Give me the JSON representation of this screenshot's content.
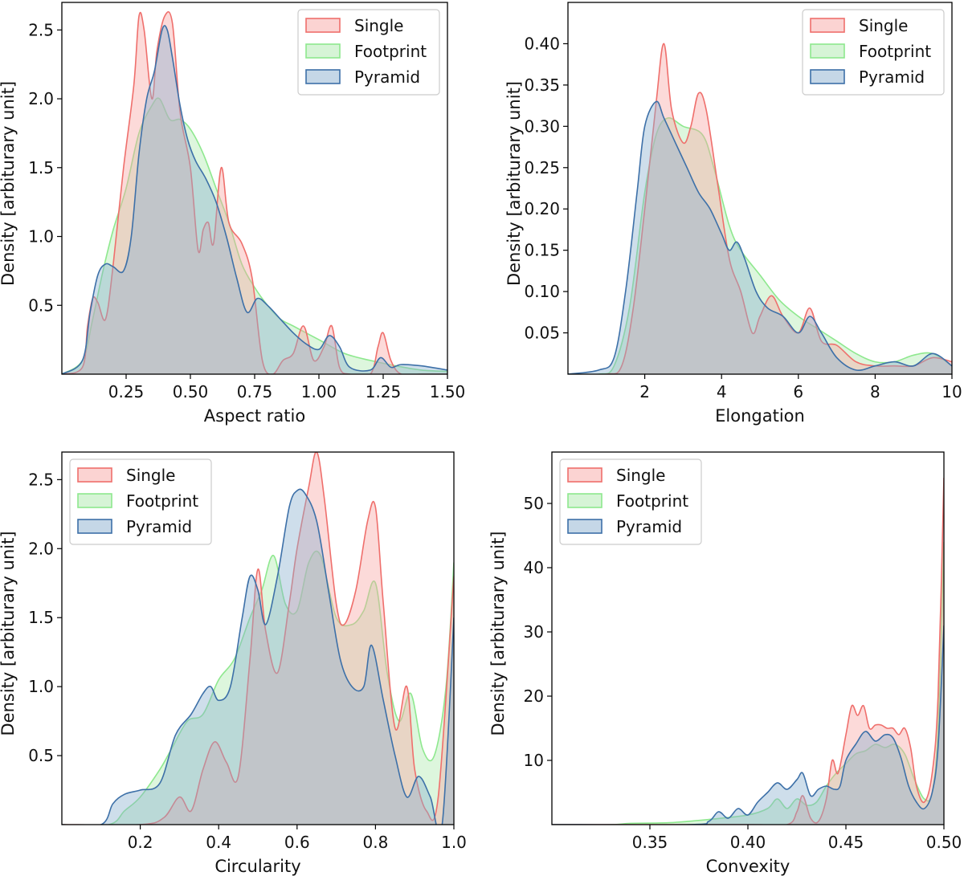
{
  "colors": {
    "Single": {
      "line": "#ef6f6c",
      "fill": "#f7a8a5"
    },
    "Footprint": {
      "line": "#8ee88e",
      "fill": "#aeeaae"
    },
    "Pyramid": {
      "line": "#3d70a8",
      "fill": "#8bb0cf"
    }
  },
  "chart_data": [
    {
      "type": "area",
      "xlabel": "Aspect ratio",
      "ylabel": "Density [arbiturary unit]",
      "xlim": [
        0.0,
        1.5
      ],
      "ylim": [
        0.0,
        2.7
      ],
      "xticks": [
        0.25,
        0.5,
        0.75,
        1.0,
        1.25,
        1.5
      ],
      "xtick_labels": [
        "0.25",
        "0.50",
        "0.75",
        "1.00",
        "1.25",
        "1.50"
      ],
      "yticks": [
        0.5,
        1.0,
        1.5,
        2.0,
        2.5
      ],
      "ytick_labels": [
        "0.5",
        "1.0",
        "1.5",
        "2.0",
        "2.5"
      ],
      "legend": {
        "placement": "top-right",
        "entries": [
          "Single",
          "Footprint",
          "Pyramid"
        ]
      },
      "series": [
        {
          "name": "Single",
          "x": [
            0.0,
            0.08,
            0.1,
            0.12,
            0.14,
            0.17,
            0.2,
            0.24,
            0.28,
            0.3,
            0.32,
            0.35,
            0.37,
            0.4,
            0.43,
            0.46,
            0.5,
            0.53,
            0.55,
            0.57,
            0.59,
            0.62,
            0.65,
            0.7,
            0.74,
            0.78,
            0.82,
            0.86,
            0.9,
            0.94,
            0.98,
            1.02,
            1.05,
            1.08,
            1.12,
            1.2,
            1.23,
            1.25,
            1.28,
            1.32,
            1.4,
            1.5
          ],
          "y": [
            0.0,
            0.05,
            0.35,
            0.55,
            0.52,
            0.4,
            0.8,
            1.5,
            2.1,
            2.6,
            2.5,
            2.0,
            2.35,
            2.6,
            2.55,
            1.9,
            1.5,
            0.9,
            1.05,
            1.1,
            0.95,
            1.5,
            1.1,
            0.95,
            0.7,
            0.1,
            0.0,
            0.1,
            0.15,
            0.35,
            0.1,
            0.2,
            0.35,
            0.05,
            0.0,
            0.0,
            0.2,
            0.3,
            0.1,
            0.0,
            0.0,
            0.0
          ]
        },
        {
          "name": "Footprint",
          "x": [
            0.0,
            0.08,
            0.12,
            0.16,
            0.2,
            0.25,
            0.3,
            0.35,
            0.38,
            0.42,
            0.46,
            0.5,
            0.55,
            0.6,
            0.65,
            0.7,
            0.75,
            0.8,
            0.85,
            0.9,
            1.0,
            1.1,
            1.2,
            1.3,
            1.4,
            1.5
          ],
          "y": [
            0.0,
            0.1,
            0.4,
            0.75,
            1.05,
            1.35,
            1.75,
            1.95,
            2.0,
            1.85,
            1.85,
            1.78,
            1.6,
            1.35,
            1.1,
            0.8,
            0.63,
            0.5,
            0.4,
            0.35,
            0.25,
            0.15,
            0.1,
            0.06,
            0.03,
            0.02
          ]
        },
        {
          "name": "Pyramid",
          "x": [
            0.0,
            0.08,
            0.11,
            0.14,
            0.17,
            0.2,
            0.24,
            0.27,
            0.3,
            0.33,
            0.36,
            0.39,
            0.41,
            0.43,
            0.46,
            0.49,
            0.52,
            0.56,
            0.6,
            0.64,
            0.68,
            0.72,
            0.76,
            0.8,
            0.85,
            0.9,
            0.95,
            1.0,
            1.04,
            1.08,
            1.12,
            1.2,
            1.24,
            1.28,
            1.32,
            1.4,
            1.5
          ],
          "y": [
            0.0,
            0.1,
            0.45,
            0.72,
            0.8,
            0.78,
            0.75,
            1.0,
            1.6,
            2.0,
            2.2,
            2.5,
            2.5,
            2.3,
            1.95,
            1.7,
            1.55,
            1.42,
            1.25,
            1.0,
            0.7,
            0.45,
            0.55,
            0.5,
            0.4,
            0.3,
            0.22,
            0.18,
            0.28,
            0.2,
            0.05,
            0.03,
            0.12,
            0.05,
            0.07,
            0.06,
            0.03
          ]
        }
      ]
    },
    {
      "type": "area",
      "xlabel": "Elongation",
      "ylabel": "Density [arbiturary unit]",
      "xlim": [
        0.0,
        10.0
      ],
      "ylim": [
        0.0,
        0.45
      ],
      "xticks": [
        2,
        4,
        6,
        8,
        10
      ],
      "xtick_labels": [
        "2",
        "4",
        "6",
        "8",
        "10"
      ],
      "yticks": [
        0.05,
        0.1,
        0.15,
        0.2,
        0.25,
        0.3,
        0.35,
        0.4
      ],
      "ytick_labels": [
        "0.05",
        "0.10",
        "0.15",
        "0.20",
        "0.25",
        "0.30",
        "0.35",
        "0.40"
      ],
      "legend": {
        "placement": "top-right",
        "entries": [
          "Single",
          "Footprint",
          "Pyramid"
        ]
      },
      "series": [
        {
          "name": "Single",
          "x": [
            0.0,
            1.0,
            1.4,
            1.7,
            2.0,
            2.3,
            2.5,
            2.7,
            3.0,
            3.2,
            3.4,
            3.6,
            3.9,
            4.2,
            4.5,
            4.8,
            5.0,
            5.3,
            5.6,
            6.0,
            6.3,
            6.6,
            7.0,
            7.5,
            8.0,
            8.5,
            9.0,
            9.5,
            10.0
          ],
          "y": [
            0.0,
            0.0,
            0.01,
            0.08,
            0.2,
            0.33,
            0.4,
            0.32,
            0.28,
            0.3,
            0.34,
            0.32,
            0.23,
            0.14,
            0.1,
            0.05,
            0.07,
            0.095,
            0.07,
            0.05,
            0.08,
            0.04,
            0.035,
            0.015,
            0.01,
            0.01,
            0.01,
            0.02,
            0.015
          ]
        },
        {
          "name": "Footprint",
          "x": [
            0.0,
            0.8,
            1.2,
            1.6,
            2.0,
            2.3,
            2.6,
            3.0,
            3.5,
            3.8,
            4.2,
            4.5,
            5.0,
            5.5,
            6.0,
            6.5,
            7.0,
            7.5,
            8.0,
            8.5,
            9.0,
            9.5,
            10.0
          ],
          "y": [
            0.0,
            0.0,
            0.01,
            0.08,
            0.22,
            0.29,
            0.31,
            0.3,
            0.29,
            0.25,
            0.18,
            0.15,
            0.12,
            0.09,
            0.07,
            0.055,
            0.04,
            0.025,
            0.015,
            0.015,
            0.023,
            0.025,
            0.01
          ]
        },
        {
          "name": "Pyramid",
          "x": [
            0.0,
            0.8,
            1.2,
            1.5,
            1.8,
            2.0,
            2.3,
            2.5,
            2.8,
            3.1,
            3.4,
            3.7,
            4.0,
            4.2,
            4.4,
            4.6,
            4.9,
            5.2,
            5.6,
            6.0,
            6.3,
            6.6,
            7.0,
            7.5,
            8.0,
            8.5,
            9.0,
            9.5,
            10.0
          ],
          "y": [
            0.0,
            0.005,
            0.02,
            0.1,
            0.22,
            0.3,
            0.33,
            0.31,
            0.28,
            0.25,
            0.22,
            0.2,
            0.17,
            0.15,
            0.16,
            0.14,
            0.1,
            0.08,
            0.07,
            0.05,
            0.07,
            0.05,
            0.02,
            0.005,
            0.01,
            0.015,
            0.01,
            0.025,
            0.01
          ]
        }
      ]
    },
    {
      "type": "area",
      "xlabel": "Circularity",
      "ylabel": "Density [arbiturary unit]",
      "xlim": [
        0.0,
        1.0
      ],
      "ylim": [
        0.0,
        2.7
      ],
      "xticks": [
        0.2,
        0.4,
        0.6,
        0.8,
        1.0
      ],
      "xtick_labels": [
        "0.2",
        "0.4",
        "0.6",
        "0.8",
        "1.0"
      ],
      "yticks": [
        0.5,
        1.0,
        1.5,
        2.0,
        2.5
      ],
      "ytick_labels": [
        "0.5",
        "1.0",
        "1.5",
        "2.0",
        "2.5"
      ],
      "legend": {
        "placement": "top-left",
        "entries": [
          "Single",
          "Footprint",
          "Pyramid"
        ]
      },
      "series": [
        {
          "name": "Single",
          "x": [
            0.0,
            0.2,
            0.26,
            0.3,
            0.33,
            0.36,
            0.39,
            0.42,
            0.45,
            0.48,
            0.5,
            0.52,
            0.55,
            0.58,
            0.6,
            0.63,
            0.65,
            0.67,
            0.7,
            0.72,
            0.75,
            0.78,
            0.8,
            0.82,
            0.85,
            0.88,
            0.9,
            0.93,
            0.96,
            1.0
          ],
          "y": [
            0.0,
            0.0,
            0.05,
            0.2,
            0.1,
            0.4,
            0.6,
            0.45,
            0.35,
            1.2,
            1.85,
            1.4,
            1.1,
            1.6,
            2.0,
            2.45,
            2.7,
            2.35,
            1.6,
            1.45,
            1.7,
            2.2,
            2.3,
            1.6,
            0.7,
            1.0,
            0.4,
            0.1,
            0.2,
            1.8
          ]
        },
        {
          "name": "Footprint",
          "x": [
            0.0,
            0.12,
            0.16,
            0.2,
            0.25,
            0.28,
            0.32,
            0.36,
            0.4,
            0.44,
            0.48,
            0.51,
            0.54,
            0.57,
            0.6,
            0.63,
            0.66,
            0.7,
            0.74,
            0.77,
            0.8,
            0.83,
            0.86,
            0.89,
            0.92,
            0.95,
            0.98,
            1.0
          ],
          "y": [
            0.0,
            0.0,
            0.1,
            0.2,
            0.4,
            0.55,
            0.75,
            0.8,
            1.05,
            1.2,
            1.5,
            1.7,
            1.95,
            1.6,
            1.55,
            1.9,
            1.95,
            1.5,
            1.45,
            1.55,
            1.75,
            1.1,
            0.75,
            0.95,
            0.55,
            0.5,
            1.0,
            1.9
          ]
        },
        {
          "name": "Pyramid",
          "x": [
            0.0,
            0.1,
            0.13,
            0.16,
            0.2,
            0.25,
            0.29,
            0.33,
            0.36,
            0.38,
            0.4,
            0.43,
            0.46,
            0.48,
            0.5,
            0.52,
            0.55,
            0.58,
            0.6,
            0.62,
            0.65,
            0.68,
            0.71,
            0.74,
            0.77,
            0.79,
            0.82,
            0.85,
            0.88,
            0.91,
            0.94,
            0.97,
            1.0
          ],
          "y": [
            0.0,
            0.0,
            0.15,
            0.22,
            0.25,
            0.3,
            0.65,
            0.8,
            0.95,
            1.0,
            0.9,
            1.0,
            1.5,
            1.8,
            1.7,
            1.45,
            1.8,
            2.3,
            2.42,
            2.4,
            2.2,
            1.7,
            1.2,
            1.0,
            1.0,
            1.3,
            0.9,
            0.5,
            0.2,
            0.35,
            0.2,
            0.0,
            1.5
          ]
        }
      ]
    },
    {
      "type": "area",
      "xlabel": "Convexity",
      "ylabel": "Density [arbiturary unit]",
      "xlim": [
        0.3,
        0.5
      ],
      "ylim": [
        0.0,
        58
      ],
      "xticks": [
        0.35,
        0.4,
        0.45,
        0.5
      ],
      "xtick_labels": [
        "0.35",
        "0.40",
        "0.45",
        "0.50"
      ],
      "yticks": [
        10,
        20,
        30,
        40,
        50
      ],
      "ytick_labels": [
        "10",
        "20",
        "30",
        "40",
        "50"
      ],
      "legend": {
        "placement": "top-left",
        "entries": [
          "Single",
          "Footprint",
          "Pyramid"
        ]
      },
      "series": [
        {
          "name": "Single",
          "x": [
            0.3,
            0.4,
            0.42,
            0.425,
            0.428,
            0.432,
            0.436,
            0.44,
            0.443,
            0.446,
            0.45,
            0.453,
            0.456,
            0.459,
            0.462,
            0.465,
            0.468,
            0.471,
            0.474,
            0.477,
            0.48,
            0.483,
            0.486,
            0.49,
            0.494,
            0.497,
            0.5
          ],
          "y": [
            0.0,
            0.0,
            0.0,
            2.0,
            4.5,
            1.0,
            0.5,
            4.0,
            10.0,
            8.0,
            14.0,
            18.5,
            17.0,
            18.5,
            15.0,
            15.5,
            15.5,
            15.0,
            15.0,
            14.0,
            15.0,
            12.0,
            6.0,
            3.5,
            8.0,
            20.0,
            54.0
          ]
        },
        {
          "name": "Footprint",
          "x": [
            0.3,
            0.33,
            0.34,
            0.36,
            0.38,
            0.4,
            0.41,
            0.415,
            0.42,
            0.425,
            0.43,
            0.435,
            0.44,
            0.445,
            0.45,
            0.455,
            0.46,
            0.465,
            0.47,
            0.475,
            0.48,
            0.485,
            0.49,
            0.494,
            0.497,
            0.5
          ],
          "y": [
            0.0,
            0.0,
            0.2,
            0.3,
            0.8,
            1.5,
            2.5,
            4.0,
            2.5,
            4.0,
            3.0,
            3.5,
            6.0,
            8.0,
            9.5,
            11.0,
            11.5,
            12.5,
            12.0,
            12.5,
            11.0,
            7.0,
            4.0,
            5.0,
            15.0,
            44.0
          ]
        },
        {
          "name": "Pyramid",
          "x": [
            0.3,
            0.37,
            0.38,
            0.385,
            0.39,
            0.395,
            0.4,
            0.405,
            0.41,
            0.415,
            0.42,
            0.425,
            0.428,
            0.432,
            0.436,
            0.44,
            0.444,
            0.447,
            0.45,
            0.455,
            0.46,
            0.465,
            0.47,
            0.474,
            0.478,
            0.482,
            0.486,
            0.49,
            0.494,
            0.497,
            0.5
          ],
          "y": [
            0.0,
            0.0,
            0.5,
            2.0,
            1.0,
            2.5,
            1.5,
            3.5,
            5.0,
            6.5,
            5.5,
            7.0,
            8.0,
            4.5,
            5.5,
            6.0,
            5.5,
            6.0,
            10.0,
            12.5,
            14.5,
            13.0,
            14.0,
            13.5,
            10.5,
            6.0,
            3.5,
            2.5,
            5.0,
            12.0,
            31.0
          ]
        }
      ]
    }
  ]
}
